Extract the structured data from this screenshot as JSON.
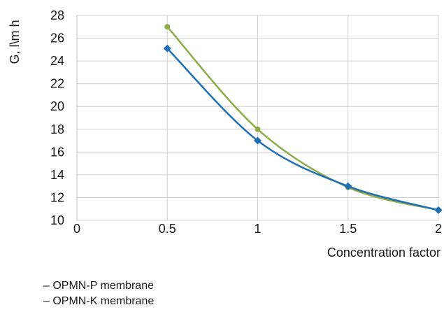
{
  "chart_data": {
    "type": "line",
    "xlabel": "Concentration factor",
    "ylabel": "G, l\\m h",
    "x_ticks": [
      "0",
      "0.5",
      "1",
      "1.5",
      "2"
    ],
    "y_ticks": [
      "10",
      "12",
      "14",
      "16",
      "18",
      "20",
      "22",
      "24",
      "26",
      "28"
    ],
    "xlim": [
      0,
      2
    ],
    "ylim": [
      10,
      28
    ],
    "grid": true,
    "series": [
      {
        "name": "OPMN-P membrane",
        "color": "#8faa4a",
        "marker": "circle",
        "x": [
          0.5,
          1,
          1.5,
          2
        ],
        "y": [
          27,
          18,
          12.9,
          10.9
        ]
      },
      {
        "name": "OPMN-K membrane",
        "color": "#1f6fb5",
        "marker": "diamond",
        "x": [
          0.5,
          1,
          1.5,
          2
        ],
        "y": [
          25.1,
          17,
          13,
          10.9
        ]
      }
    ],
    "legend_prefix": "–",
    "legend_placement": "bottom-left"
  }
}
